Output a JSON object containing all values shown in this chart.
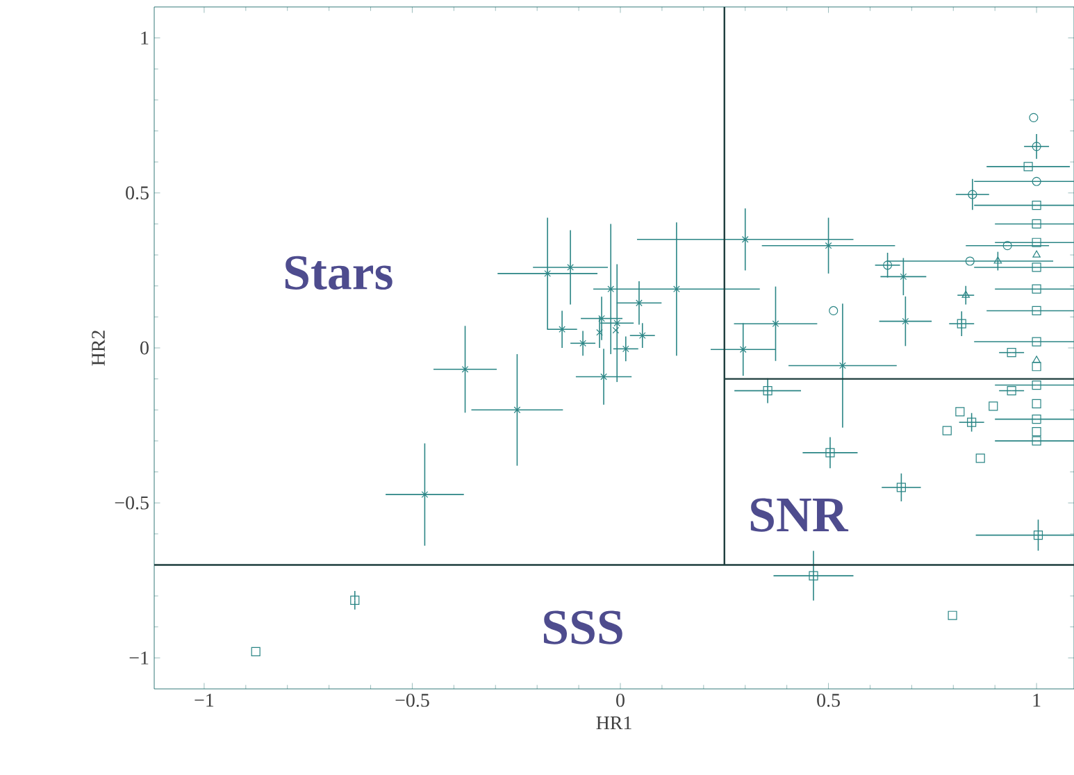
{
  "chart_data": {
    "type": "scatter",
    "xlabel": "HR1",
    "ylabel": "HR2",
    "xlim": [
      -1.12,
      1.09
    ],
    "ylim": [
      -1.1,
      1.1
    ],
    "xticks": [
      {
        "value": -1,
        "label": "−1"
      },
      {
        "value": -0.5,
        "label": "−0.5"
      },
      0,
      0.5,
      1
    ],
    "yticks": [
      {
        "value": -1,
        "label": "−1"
      },
      {
        "value": -0.5,
        "label": "−0.5"
      },
      0,
      0.5,
      1
    ],
    "annotations": [
      "Stars",
      "SNR",
      "SSS"
    ],
    "series": [
      {
        "marker": "cross",
        "color": "#2a8585",
        "x": [
          -0.175,
          -0.12,
          -0.023,
          0.045,
          0.135,
          -0.14,
          -0.09,
          -0.045,
          -0.05,
          -0.008,
          -0.011,
          0.013,
          0.053,
          -0.04,
          -0.373,
          -0.248,
          -0.47,
          0.3,
          0.5,
          0.68,
          0.685,
          0.373,
          0.295,
          0.534
        ],
        "values": [
          0.24,
          0.26,
          0.19,
          0.145,
          0.19,
          0.06,
          0.015,
          0.095,
          0.05,
          0.08,
          0.057,
          -0.003,
          0.04,
          -0.093,
          -0.069,
          -0.2,
          -0.473,
          0.35,
          0.33,
          0.23,
          0.086,
          0.078,
          -0.005,
          -0.057
        ],
        "xerrors": [
          0.12,
          0.09,
          null,
          0.054,
          0.2,
          0.036,
          0.03,
          0.05,
          null,
          0.04,
          null,
          0.03,
          0.03,
          0.067,
          0.076,
          0.11,
          0.094,
          0.26,
          0.16,
          0.055,
          0.063,
          0.1,
          0.078,
          0.13
        ],
        "errors": [
          0.18,
          0.12,
          0.21,
          0.07,
          0.215,
          0.06,
          0.04,
          0.07,
          0.05,
          0.19,
          null,
          0.04,
          0.04,
          0.09,
          0.14,
          0.18,
          0.165,
          0.1,
          0.09,
          0.06,
          0.08,
          0.12,
          0.085,
          0.2
        ]
      },
      {
        "marker": "circle",
        "color": "#2a8585",
        "x": [
          0.642,
          0.512,
          0.84,
          0.93,
          0.993,
          1.0,
          1.0,
          0.846
        ],
        "values": [
          0.267,
          0.12,
          0.28,
          0.33,
          0.743,
          0.65,
          0.537,
          0.495
        ],
        "xerrors": [
          0.03,
          null,
          0.2,
          0.1,
          null,
          0.03,
          0.15,
          0.04
        ],
        "errors": [
          0.04,
          null,
          null,
          null,
          null,
          0.04,
          null,
          0.05
        ]
      },
      {
        "marker": "triangle",
        "color": "#2a8585",
        "x": [
          0.907,
          0.83,
          1.0,
          1.0
        ],
        "values": [
          0.28,
          0.17,
          0.3,
          -0.04
        ],
        "xerrors": [
          null,
          0.02,
          null,
          null
        ],
        "errors": [
          0.03,
          0.03,
          null,
          null
        ]
      },
      {
        "marker": "square",
        "color": "#2a8585",
        "x": [
          0.82,
          0.98,
          1.0,
          1.0,
          1.0,
          1.0,
          1.0,
          1.0,
          1.0,
          1.0,
          1.0,
          1.0,
          1.0,
          1.0,
          1.0,
          0.354,
          0.94,
          0.94,
          0.896,
          0.816,
          0.785,
          0.844,
          0.865,
          0.504,
          0.675,
          1.004,
          0.464,
          0.798,
          -0.638,
          -0.876
        ],
        "values": [
          0.078,
          0.585,
          0.46,
          0.4,
          0.34,
          0.26,
          0.19,
          0.12,
          0.02,
          -0.06,
          -0.12,
          -0.18,
          -0.23,
          -0.27,
          -0.3,
          -0.138,
          -0.015,
          -0.138,
          -0.188,
          -0.206,
          -0.267,
          -0.24,
          -0.356,
          -0.338,
          -0.45,
          -0.604,
          -0.735,
          -0.863,
          -0.814,
          -0.98
        ],
        "xerrors": [
          0.03,
          0.1,
          0.15,
          0.1,
          0.1,
          0.15,
          0.1,
          0.12,
          0.15,
          null,
          0.1,
          null,
          0.1,
          null,
          0.1,
          0.08,
          0.03,
          0.03,
          null,
          null,
          null,
          0.03,
          null,
          0.066,
          0.047,
          0.15,
          0.096,
          null,
          null,
          null
        ],
        "errors": [
          0.04,
          null,
          null,
          null,
          null,
          null,
          null,
          null,
          null,
          null,
          null,
          null,
          null,
          null,
          null,
          0.04,
          null,
          null,
          null,
          null,
          null,
          0.03,
          null,
          0.05,
          0.045,
          0.05,
          0.08,
          null,
          0.03,
          null
        ]
      },
      {
        "type": "line",
        "marker": "none",
        "color": "#1d3d3d",
        "x": [
          0.25,
          0.25
        ],
        "values": [
          1.1,
          -0.7
        ]
      },
      {
        "type": "line",
        "marker": "none",
        "color": "#1d3d3d",
        "x": [
          -1.12,
          1.09
        ],
        "values": [
          -0.7,
          -0.7
        ]
      },
      {
        "type": "line",
        "marker": "none",
        "color": "#1d3d3d",
        "x": [
          0.25,
          1.09
        ],
        "values": [
          -0.1,
          -0.1
        ]
      }
    ]
  }
}
